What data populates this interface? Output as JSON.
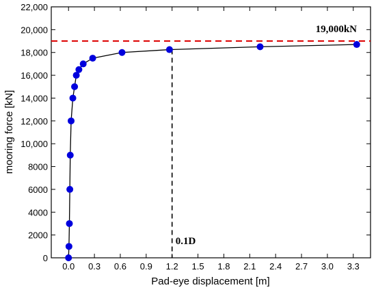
{
  "chart_data": {
    "type": "line",
    "title": "",
    "xlabel": "Pad-eye displacement  [m]",
    "ylabel": "mooring force  [kN]",
    "xlim": [
      -0.2,
      3.5
    ],
    "ylim": [
      0,
      22000
    ],
    "x_ticks": [
      0.0,
      0.3,
      0.6,
      0.9,
      1.2,
      1.5,
      1.8,
      2.1,
      2.4,
      2.7,
      3.0,
      3.3
    ],
    "x_tick_labels": [
      "0.0",
      "0.3",
      "0.6",
      "0.9",
      "1.2",
      "1.5",
      "1.8",
      "2.1",
      "2.4",
      "2.7",
      "3.0",
      "3.3"
    ],
    "y_ticks": [
      0,
      2000,
      4000,
      6000,
      8000,
      10000,
      12000,
      14000,
      16000,
      18000,
      20000,
      22000
    ],
    "y_tick_labels": [
      "0",
      "2000",
      "4000",
      "6000",
      "8000",
      "10,000",
      "12,000",
      "14,000",
      "16,000",
      "18,000",
      "20,000",
      "22,000"
    ],
    "grid": false,
    "series": [
      {
        "color": "#0000dd",
        "line_color": "#000000",
        "points": [
          {
            "x": 0.0,
            "y": 0
          },
          {
            "x": 0.005,
            "y": 1000
          },
          {
            "x": 0.01,
            "y": 3000
          },
          {
            "x": 0.015,
            "y": 6000
          },
          {
            "x": 0.02,
            "y": 9000
          },
          {
            "x": 0.03,
            "y": 12000
          },
          {
            "x": 0.05,
            "y": 14000
          },
          {
            "x": 0.07,
            "y": 15000
          },
          {
            "x": 0.09,
            "y": 16000
          },
          {
            "x": 0.12,
            "y": 16500
          },
          {
            "x": 0.17,
            "y": 17000
          },
          {
            "x": 0.28,
            "y": 17500
          },
          {
            "x": 0.62,
            "y": 18000
          },
          {
            "x": 1.17,
            "y": 18250
          },
          {
            "x": 2.22,
            "y": 18500
          },
          {
            "x": 3.34,
            "y": 18700
          }
        ]
      }
    ],
    "reference_lines": [
      {
        "orientation": "horizontal",
        "value": 19000,
        "color": "#dd0000",
        "style": "dashed",
        "label": "19,000kN"
      },
      {
        "orientation": "vertical",
        "value": 1.2,
        "y_to": 18250,
        "color": "#000000",
        "style": "dashed",
        "label": "0.1D"
      }
    ]
  }
}
